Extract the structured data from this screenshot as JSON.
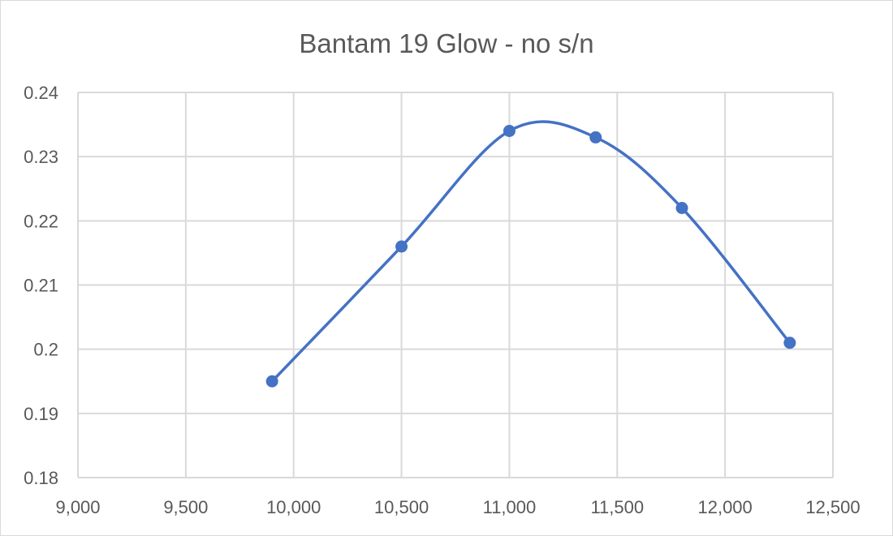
{
  "chart_data": {
    "type": "scatter",
    "title": "Bantam 19 Glow - no s/n",
    "xlabel": "",
    "ylabel": "",
    "xlim": [
      9000,
      12500
    ],
    "ylim": [
      0.18,
      0.24
    ],
    "x_ticks": [
      "9,000",
      "9,500",
      "10,000",
      "10,500",
      "11,000",
      "11,500",
      "12,000",
      "12,500"
    ],
    "y_ticks": [
      "0.18",
      "0.19",
      "0.2",
      "0.21",
      "0.22",
      "0.23",
      "0.24"
    ],
    "x_tick_values": [
      9000,
      9500,
      10000,
      10500,
      11000,
      11500,
      12000,
      12500
    ],
    "y_tick_values": [
      0.18,
      0.19,
      0.2,
      0.21,
      0.22,
      0.23,
      0.24
    ],
    "grid": true,
    "smooth_line": true,
    "series": [
      {
        "color": "#4472c4",
        "x": [
          9900,
          10500,
          11000,
          11400,
          11800,
          12300
        ],
        "y": [
          0.195,
          0.216,
          0.234,
          0.233,
          0.222,
          0.201
        ]
      }
    ]
  }
}
